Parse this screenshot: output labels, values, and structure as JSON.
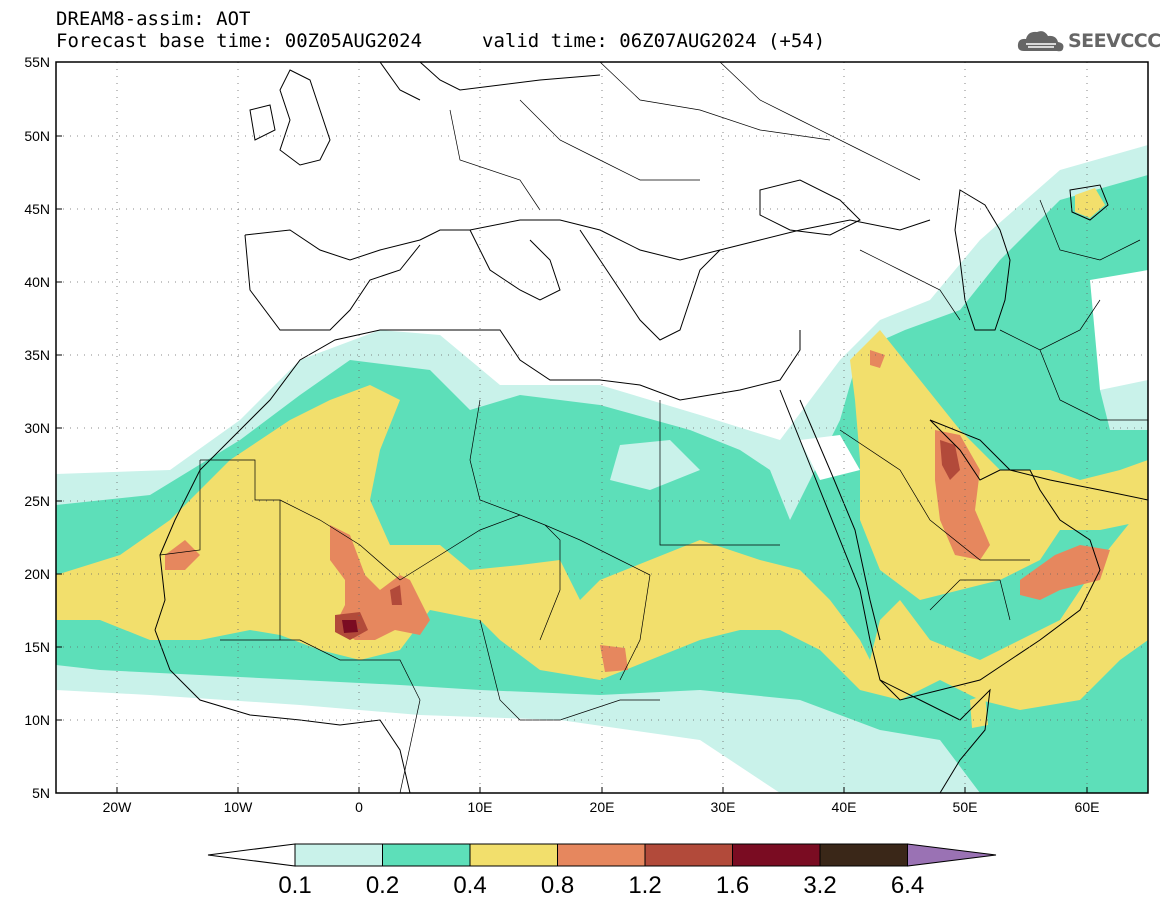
{
  "header": {
    "title": "DREAM8-assim: AOT",
    "base_time": "Forecast base time: 00Z05AUG2024",
    "valid_time": "valid time: 06Z07AUG2024 (+54)"
  },
  "logo": {
    "text": "SEEVCCC",
    "icon": "cloud-icon"
  },
  "axes": {
    "lat_labels": [
      "55N",
      "50N",
      "45N",
      "40N",
      "35N",
      "30N",
      "25N",
      "20N",
      "15N",
      "10N",
      "5N"
    ],
    "lon_labels": [
      "20W",
      "10W",
      "0",
      "10E",
      "20E",
      "30E",
      "40E",
      "50E",
      "60E"
    ]
  },
  "colorbar": {
    "labels": [
      "0.1",
      "0.2",
      "0.4",
      "0.8",
      "1.2",
      "1.6",
      "3.2",
      "6.4"
    ],
    "colors": [
      "#c9f2ea",
      "#5ddfb9",
      "#f2df6c",
      "#e6875e",
      "#b24a3a",
      "#7a0c22",
      "#3a2718",
      "#9a72b4"
    ]
  }
}
